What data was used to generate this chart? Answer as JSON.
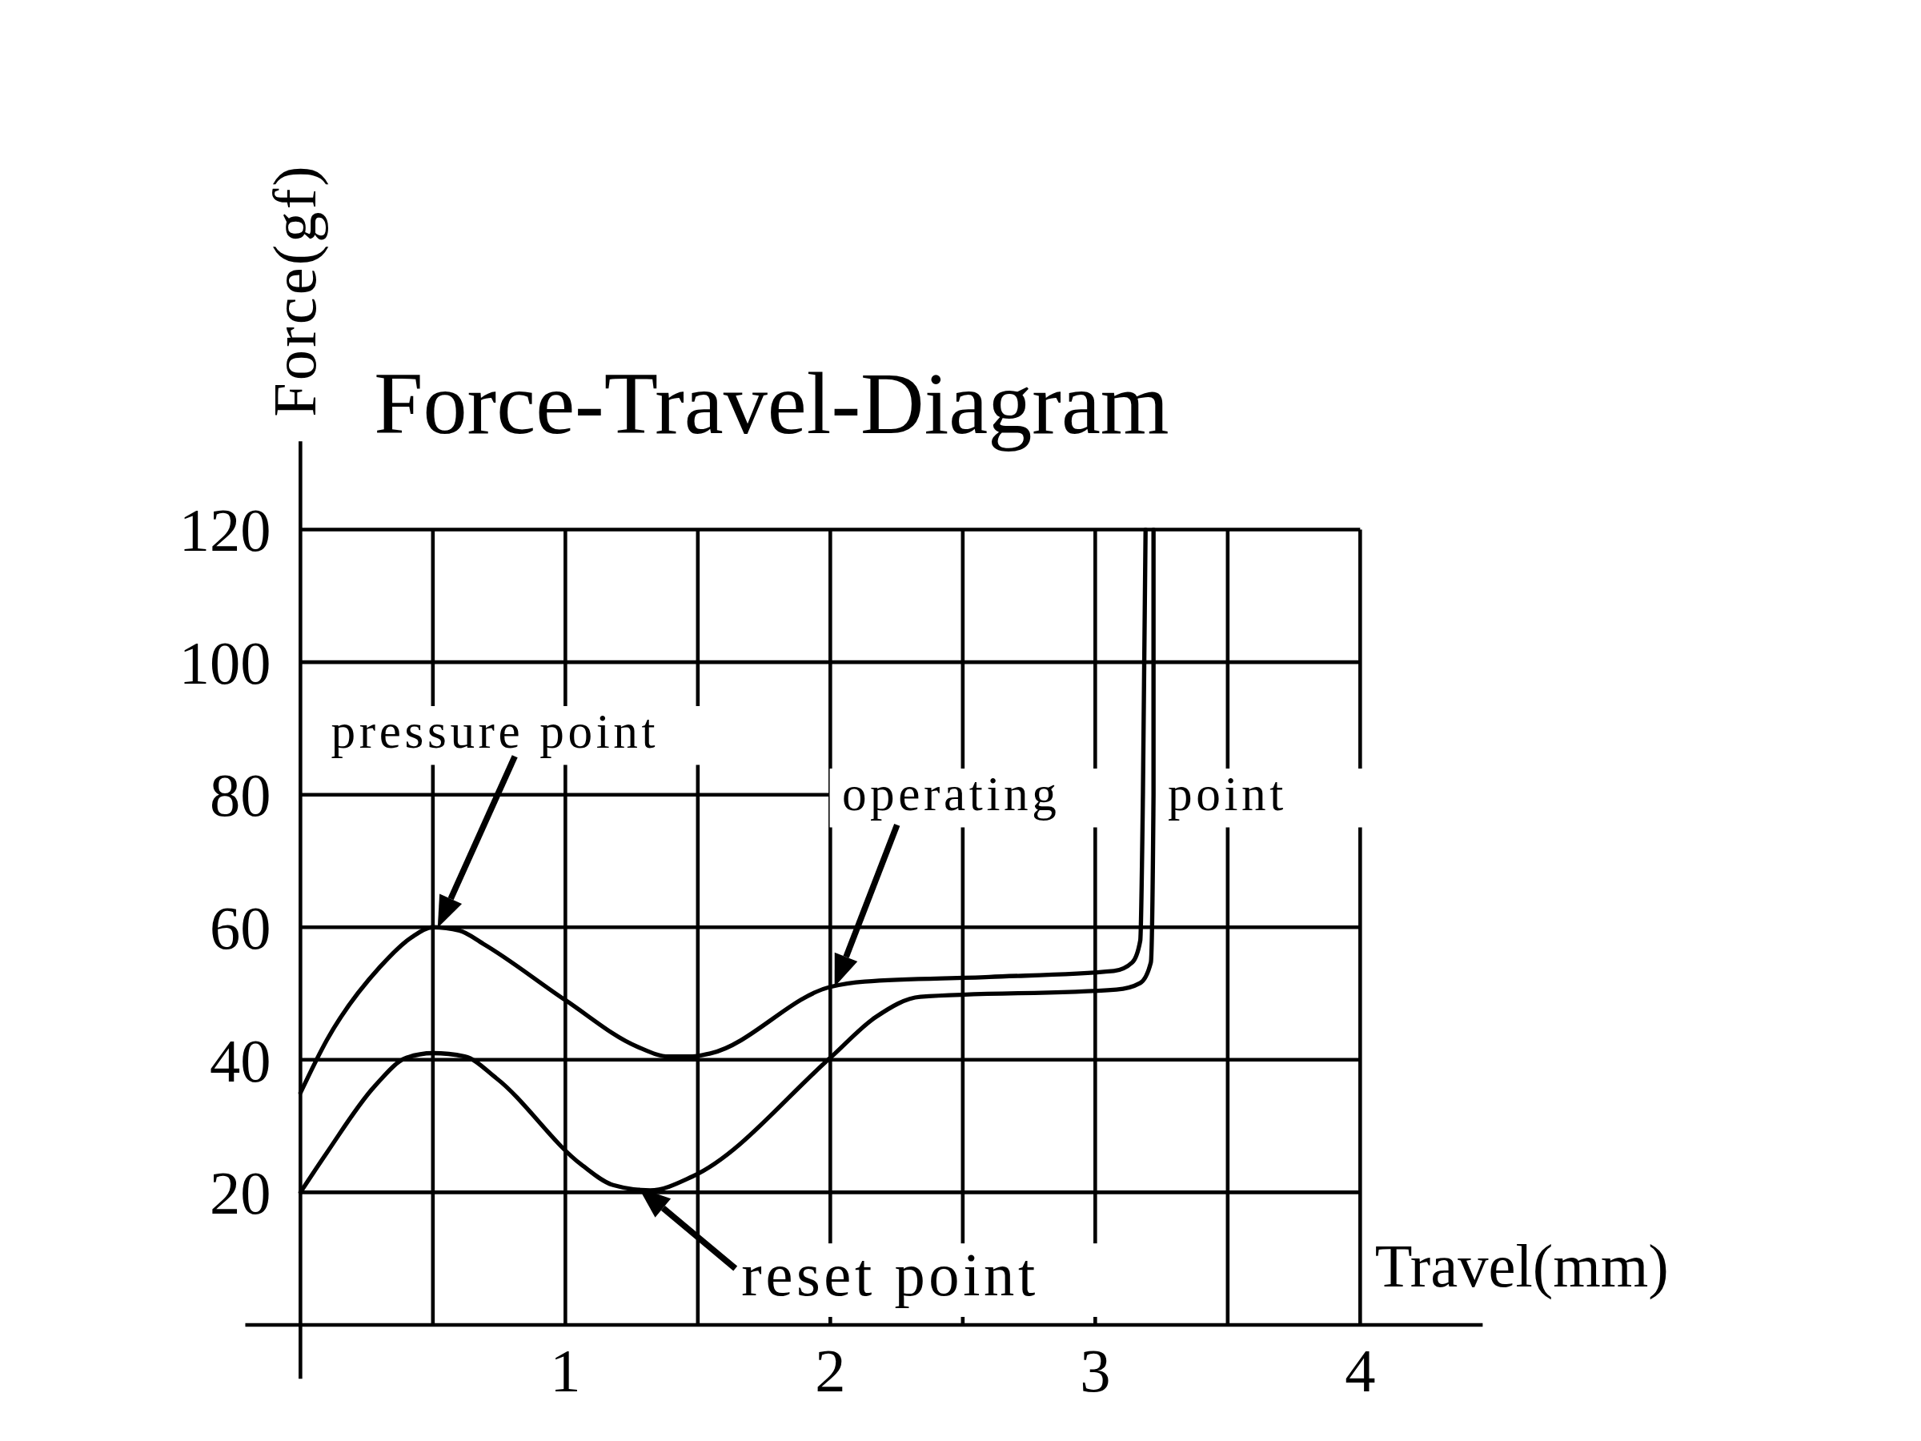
{
  "chart_data": {
    "type": "line",
    "title": "Force-Travel-Diagram",
    "xlabel": "Travel(mm)",
    "ylabel": "Force(gf)",
    "xlim": [
      0,
      4
    ],
    "ylim": [
      0,
      120
    ],
    "xticks": [
      {
        "value": 0.5,
        "label": null
      },
      1,
      {
        "value": 1.5,
        "label": null
      },
      2,
      {
        "value": 2.5,
        "label": null
      },
      3,
      {
        "value": 3.5,
        "label": null
      },
      4
    ],
    "yticks": [
      20,
      40,
      60,
      80,
      100,
      120
    ],
    "grid": true,
    "line_style": "solid",
    "series": [
      {
        "color": "#000000",
        "x": [
          0,
          0.1,
          0.3,
          0.42,
          0.5,
          0.6,
          0.69,
          1.0,
          1.27,
          1.39,
          1.48,
          1.55,
          2.0,
          2.13,
          2.6,
          3.07,
          3.14,
          3.17,
          3.18,
          3.19
        ],
        "values": [
          35,
          43,
          54,
          58.5,
          60,
          59.5,
          57.5,
          49,
          42,
          40.5,
          40.5,
          41,
          51,
          51.8,
          52.5,
          53.4,
          54.7,
          58,
          80,
          120
        ]
      },
      {
        "color": "#000000",
        "x": [
          0,
          0.1,
          0.28,
          0.4,
          0.5,
          0.62,
          0.74,
          1.06,
          1.18,
          1.32,
          1.48,
          2.0,
          2.17,
          2.34,
          3.08,
          3.17,
          3.21,
          3.22,
          3.22
        ],
        "values": [
          20,
          26,
          36,
          40.3,
          41,
          40.5,
          37.2,
          24.2,
          21.1,
          20.3,
          22.4,
          40.3,
          46.4,
          49.5,
          50.6,
          51.6,
          54.7,
          80,
          120
        ]
      }
    ],
    "annotations": [
      "pressure point",
      "operating point",
      "reset point"
    ]
  }
}
